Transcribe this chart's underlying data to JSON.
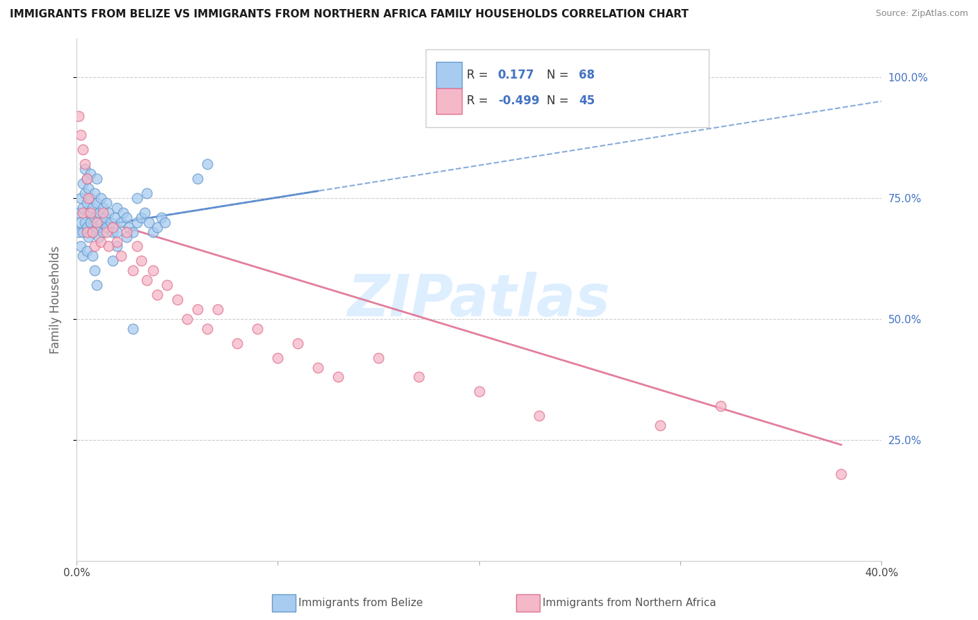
{
  "title": "IMMIGRANTS FROM BELIZE VS IMMIGRANTS FROM NORTHERN AFRICA FAMILY HOUSEHOLDS CORRELATION CHART",
  "source": "Source: ZipAtlas.com",
  "ylabel": "Family Households",
  "belize_color": "#A8CCF0",
  "belize_edge": "#6699CC",
  "northern_africa_color": "#F5B8C8",
  "northern_africa_edge": "#E07090",
  "trend_belize_color": "#5588CC",
  "trend_africa_color": "#E07090",
  "watermark": "ZIPatlas",
  "watermark_color": "#DDEEFF",
  "right_tick_color": "#4472C4",
  "belize_x": [
    0.001,
    0.001,
    0.002,
    0.002,
    0.002,
    0.003,
    0.003,
    0.003,
    0.003,
    0.004,
    0.004,
    0.004,
    0.005,
    0.005,
    0.005,
    0.005,
    0.006,
    0.006,
    0.006,
    0.007,
    0.007,
    0.007,
    0.008,
    0.008,
    0.009,
    0.009,
    0.01,
    0.01,
    0.01,
    0.011,
    0.011,
    0.012,
    0.012,
    0.013,
    0.013,
    0.014,
    0.015,
    0.015,
    0.016,
    0.017,
    0.018,
    0.019,
    0.02,
    0.02,
    0.022,
    0.023,
    0.025,
    0.026,
    0.028,
    0.03,
    0.032,
    0.034,
    0.036,
    0.038,
    0.04,
    0.042,
    0.044,
    0.03,
    0.035,
    0.008,
    0.009,
    0.01,
    0.018,
    0.02,
    0.025,
    0.06,
    0.065,
    0.028
  ],
  "belize_y": [
    0.72,
    0.68,
    0.75,
    0.7,
    0.65,
    0.78,
    0.73,
    0.68,
    0.63,
    0.81,
    0.76,
    0.7,
    0.79,
    0.74,
    0.69,
    0.64,
    0.77,
    0.72,
    0.67,
    0.8,
    0.75,
    0.7,
    0.73,
    0.68,
    0.76,
    0.71,
    0.79,
    0.74,
    0.69,
    0.72,
    0.67,
    0.75,
    0.7,
    0.73,
    0.68,
    0.71,
    0.74,
    0.69,
    0.72,
    0.7,
    0.68,
    0.71,
    0.73,
    0.68,
    0.7,
    0.72,
    0.71,
    0.69,
    0.68,
    0.7,
    0.71,
    0.72,
    0.7,
    0.68,
    0.69,
    0.71,
    0.7,
    0.75,
    0.76,
    0.63,
    0.6,
    0.57,
    0.62,
    0.65,
    0.67,
    0.79,
    0.82,
    0.48
  ],
  "africa_x": [
    0.001,
    0.002,
    0.003,
    0.003,
    0.004,
    0.005,
    0.005,
    0.006,
    0.007,
    0.008,
    0.009,
    0.01,
    0.012,
    0.013,
    0.015,
    0.016,
    0.018,
    0.02,
    0.022,
    0.025,
    0.028,
    0.03,
    0.032,
    0.035,
    0.038,
    0.04,
    0.045,
    0.05,
    0.055,
    0.06,
    0.065,
    0.07,
    0.08,
    0.09,
    0.1,
    0.11,
    0.12,
    0.13,
    0.15,
    0.17,
    0.2,
    0.23,
    0.29,
    0.32,
    0.38
  ],
  "africa_y": [
    0.92,
    0.88,
    0.85,
    0.72,
    0.82,
    0.79,
    0.68,
    0.75,
    0.72,
    0.68,
    0.65,
    0.7,
    0.66,
    0.72,
    0.68,
    0.65,
    0.69,
    0.66,
    0.63,
    0.68,
    0.6,
    0.65,
    0.62,
    0.58,
    0.6,
    0.55,
    0.57,
    0.54,
    0.5,
    0.52,
    0.48,
    0.52,
    0.45,
    0.48,
    0.42,
    0.45,
    0.4,
    0.38,
    0.42,
    0.38,
    0.35,
    0.3,
    0.28,
    0.32,
    0.18
  ],
  "belize_trend_x0": 0.0,
  "belize_trend_x1": 0.4,
  "belize_trend_y0": 0.685,
  "belize_trend_y1": 0.95,
  "africa_trend_x0": 0.0,
  "africa_trend_x1": 0.38,
  "africa_trend_y0": 0.72,
  "africa_trend_y1": 0.24,
  "xlim": [
    0.0,
    0.4
  ],
  "ylim": [
    0.0,
    1.08
  ],
  "yticks": [
    0.25,
    0.5,
    0.75,
    1.0
  ],
  "ytick_labels": [
    "25.0%",
    "50.0%",
    "75.0%",
    "100.0%"
  ],
  "xticks": [
    0.0,
    0.1,
    0.2,
    0.3,
    0.4
  ],
  "xtick_labels_show": [
    "0.0%",
    "",
    "",
    "",
    "40.0%"
  ]
}
